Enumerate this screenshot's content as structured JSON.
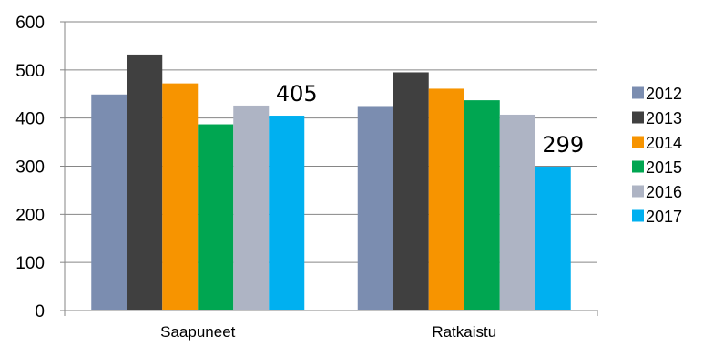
{
  "chart_data": {
    "type": "bar",
    "categories": [
      "Saapuneet",
      "Ratkaistu"
    ],
    "series": [
      {
        "name": "2012",
        "values": [
          449,
          425
        ],
        "color": "#7b8db0"
      },
      {
        "name": "2013",
        "values": [
          532,
          495
        ],
        "color": "#404040"
      },
      {
        "name": "2014",
        "values": [
          472,
          461
        ],
        "color": "#f79400"
      },
      {
        "name": "2015",
        "values": [
          387,
          437
        ],
        "color": "#00a651"
      },
      {
        "name": "2016",
        "values": [
          426,
          407
        ],
        "color": "#aeb4c4"
      },
      {
        "name": "2017",
        "values": [
          405,
          299
        ],
        "color": "#00b0f0"
      }
    ],
    "data_labels": [
      {
        "series": "2017",
        "category": "Saapuneet",
        "text": "405"
      },
      {
        "series": "2017",
        "category": "Ratkaistu",
        "text": "299"
      }
    ],
    "yticks": [
      "0",
      "100",
      "200",
      "300",
      "400",
      "500",
      "600"
    ],
    "ylim": [
      0,
      600
    ],
    "grid": true,
    "legend_position": "right",
    "title": "",
    "xlabel": "",
    "ylabel": ""
  }
}
